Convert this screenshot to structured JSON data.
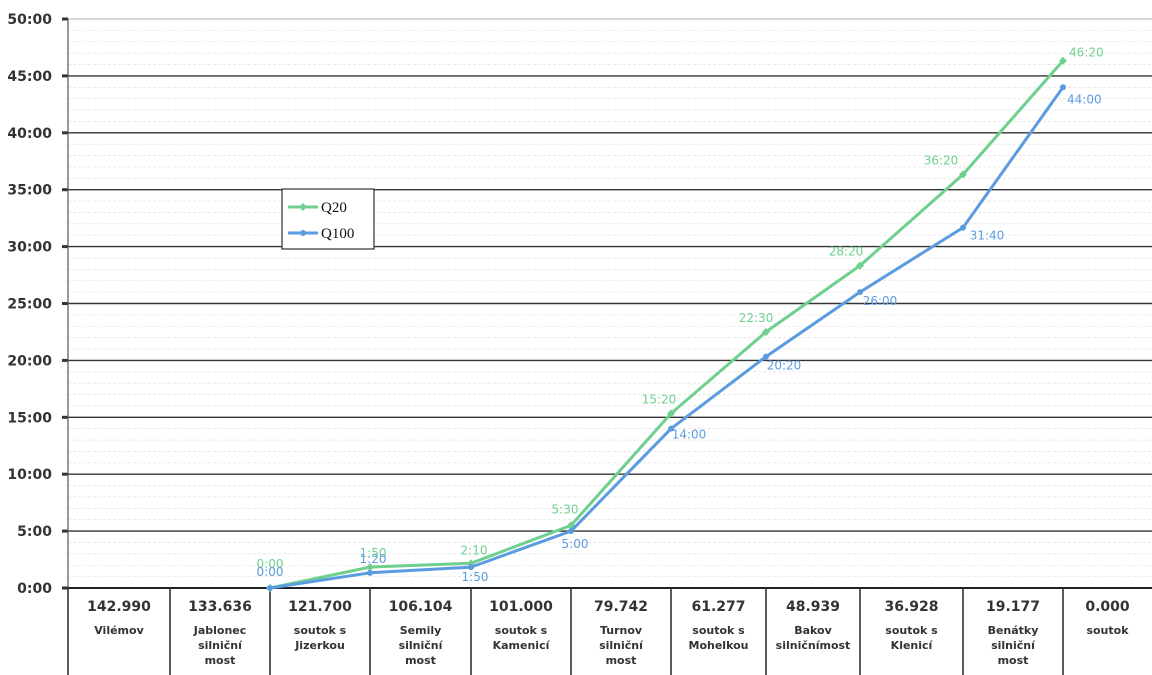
{
  "chart_data": {
    "type": "line",
    "title": "",
    "xlabel": "",
    "ylabel": "",
    "ylim": [
      0,
      50
    ],
    "yticks": [
      "0:00",
      "5:00",
      "10:00",
      "15:00",
      "20:00",
      "25:00",
      "30:00",
      "35:00",
      "40:00",
      "45:00",
      "50:00"
    ],
    "grid": true,
    "legend": "center-left",
    "categories": [
      {
        "km": "142.990",
        "name": [
          "Vilémov"
        ]
      },
      {
        "km": "133.636",
        "name": [
          "Jablonec",
          "silniční",
          "most"
        ]
      },
      {
        "km": "121.700",
        "name": [
          "soutok s",
          "Jizerkou"
        ]
      },
      {
        "km": "106.104",
        "name": [
          "Semily",
          "silniční",
          "most"
        ]
      },
      {
        "km": "101.000",
        "name": [
          "soutok s",
          "Kamenicí"
        ]
      },
      {
        "km": "79.742",
        "name": [
          "Turnov",
          "silniční",
          "most"
        ]
      },
      {
        "km": "61.277",
        "name": [
          "soutok s",
          "Mohelkou"
        ]
      },
      {
        "km": "48.939",
        "name": [
          "Bakov",
          "silničnímost"
        ]
      },
      {
        "km": "36.928",
        "name": [
          "soutok s",
          "Klenicí"
        ]
      },
      {
        "km": "19.177",
        "name": [
          "Benátky",
          "silniční",
          "most"
        ]
      },
      {
        "km": "0.000",
        "name": [
          "soutok"
        ]
      }
    ],
    "series": [
      {
        "name": "Q20",
        "color": "#6fcf8f",
        "marker": "diamond",
        "values": [
          null,
          null,
          0.0,
          1.833,
          2.167,
          5.5,
          15.333,
          22.5,
          28.333,
          36.333,
          46.333
        ],
        "labels": [
          null,
          null,
          "0:00",
          "1:50",
          "2:10",
          "5:30",
          "15:20",
          "22:30",
          "28:20",
          "36:20",
          "46:20"
        ]
      },
      {
        "name": "Q100",
        "color": "#5b9be0",
        "marker": "dot",
        "values": [
          null,
          null,
          0.0,
          1.333,
          1.833,
          5.0,
          14.0,
          20.333,
          26.0,
          31.667,
          44.0
        ],
        "labels": [
          null,
          null,
          "0:00",
          "1:20",
          "1:50",
          "5:00",
          "14:00",
          "20:20",
          "26:00",
          "31:40",
          "44:00"
        ]
      }
    ]
  }
}
